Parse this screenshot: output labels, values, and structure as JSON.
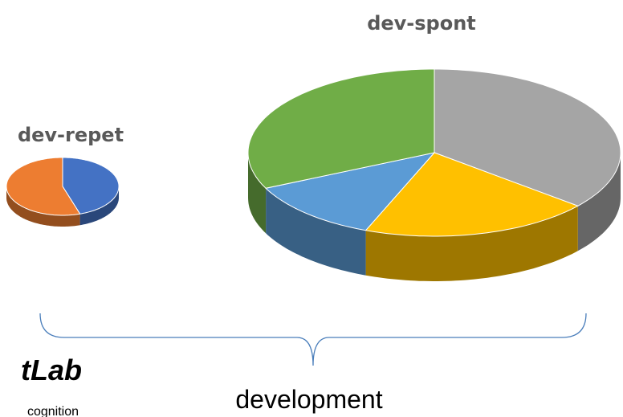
{
  "chart_data": [
    {
      "type": "pie",
      "title": "dev-repet",
      "values": [
        45,
        55
      ],
      "colors": [
        "#4472c4",
        "#ed7d31"
      ]
    },
    {
      "type": "pie",
      "title": "dev-spont",
      "values": [
        36,
        20,
        12,
        32
      ],
      "colors": [
        "#a5a5a5",
        "#ffc000",
        "#5b9bd5",
        "#70ad47"
      ]
    }
  ],
  "labels": {
    "group": "development",
    "logo": "tLab",
    "logo_sub": "cognition"
  }
}
